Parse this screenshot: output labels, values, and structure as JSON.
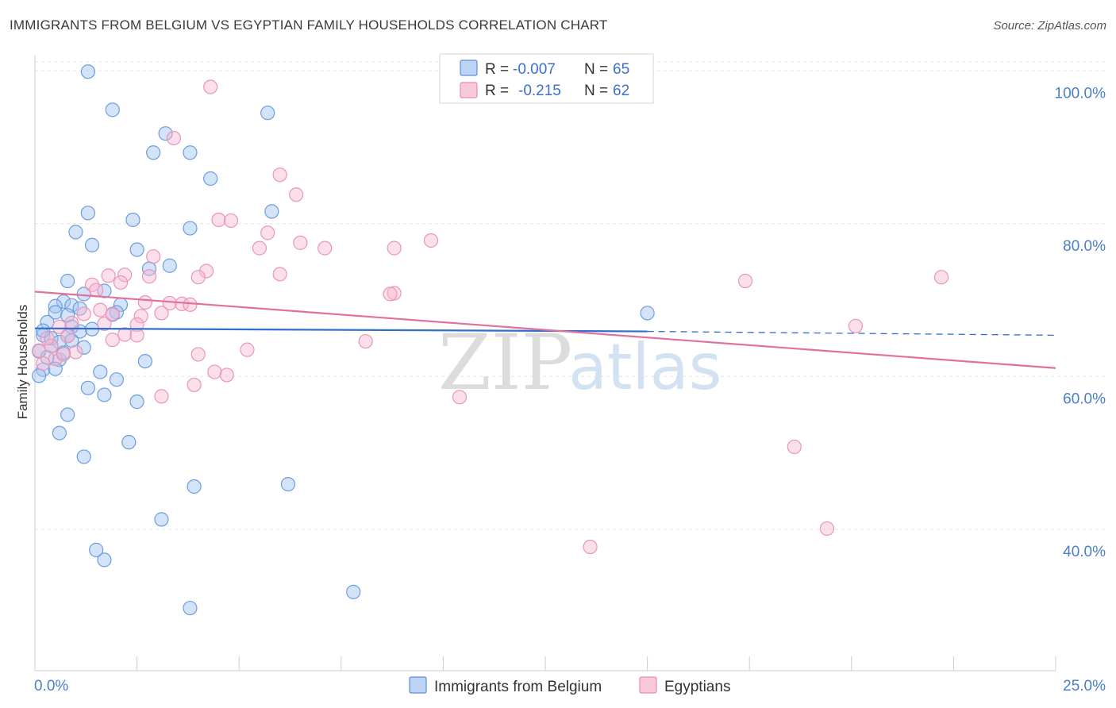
{
  "title": "IMMIGRANTS FROM BELGIUM VS EGYPTIAN FAMILY HOUSEHOLDS CORRELATION CHART",
  "source": "Source: ZipAtlas.com",
  "watermark": {
    "zip": "ZIP",
    "atlas": "atlas"
  },
  "legend": {
    "rows": [
      {
        "r_label": "R =",
        "r_value": "-0.007",
        "n_label": "N =",
        "n_value": "65"
      },
      {
        "r_label": "R =",
        "r_value": "-0.215",
        "n_label": "N =",
        "n_value": "62"
      }
    ]
  },
  "chart_data": {
    "type": "scatter",
    "title": "IMMIGRANTS FROM BELGIUM VS EGYPTIAN FAMILY HOUSEHOLDS CORRELATION CHART",
    "xlabel": "",
    "ylabel": "Family Households",
    "xlim": [
      0,
      25
    ],
    "ylim": [
      21.5,
      102
    ],
    "x_tick_labels": [
      "0.0%",
      "25.0%"
    ],
    "y_ticks": [
      40,
      60,
      80,
      100
    ],
    "y_tick_labels": [
      "40.0%",
      "60.0%",
      "80.0%",
      "100.0%"
    ],
    "grid": true,
    "legend_placement": "top-center",
    "colors": {
      "belgium": "#5b8fd9",
      "egyptians": "#e98ab0",
      "belgium_line": "#2f6fcf",
      "egyptians_line": "#e0719c"
    },
    "series": [
      {
        "name": "Immigrants from Belgium",
        "R": -0.007,
        "N": 65,
        "trend": {
          "x0": 0,
          "y0": 66.3,
          "x1": 15,
          "y1": 65.9,
          "dash_to_x": 25,
          "dash_to_y": 65.4
        },
        "points": [
          [
            1.3,
            99.9
          ],
          [
            1.9,
            94.9
          ],
          [
            5.7,
            94.5
          ],
          [
            3.2,
            91.8
          ],
          [
            3.8,
            89.3
          ],
          [
            2.9,
            89.3
          ],
          [
            4.3,
            85.9
          ],
          [
            5.8,
            81.6
          ],
          [
            1.3,
            81.4
          ],
          [
            2.4,
            80.5
          ],
          [
            3.8,
            79.4
          ],
          [
            1.0,
            78.9
          ],
          [
            1.4,
            77.2
          ],
          [
            2.5,
            76.6
          ],
          [
            3.3,
            74.5
          ],
          [
            2.8,
            74.1
          ],
          [
            0.8,
            72.5
          ],
          [
            1.7,
            71.2
          ],
          [
            1.2,
            70.8
          ],
          [
            0.7,
            69.8
          ],
          [
            0.9,
            69.3
          ],
          [
            2.1,
            69.4
          ],
          [
            0.5,
            69.2
          ],
          [
            1.1,
            68.9
          ],
          [
            0.5,
            68.4
          ],
          [
            2.0,
            68.4
          ],
          [
            1.9,
            68.1
          ],
          [
            0.8,
            68.0
          ],
          [
            15.0,
            68.3
          ],
          [
            0.3,
            67.1
          ],
          [
            0.9,
            66.5
          ],
          [
            1.1,
            65.9
          ],
          [
            0.2,
            65.4
          ],
          [
            0.4,
            65.0
          ],
          [
            0.6,
            64.5
          ],
          [
            0.8,
            65.3
          ],
          [
            1.2,
            63.8
          ],
          [
            0.1,
            63.3
          ],
          [
            0.6,
            62.2
          ],
          [
            2.7,
            62.0
          ],
          [
            0.2,
            60.9
          ],
          [
            0.1,
            60.1
          ],
          [
            1.6,
            60.6
          ],
          [
            2.0,
            59.6
          ],
          [
            1.3,
            58.5
          ],
          [
            1.7,
            57.6
          ],
          [
            2.5,
            56.7
          ],
          [
            0.8,
            55.0
          ],
          [
            0.6,
            52.6
          ],
          [
            2.3,
            51.4
          ],
          [
            1.2,
            49.5
          ],
          [
            3.9,
            45.6
          ],
          [
            6.2,
            45.9
          ],
          [
            3.1,
            41.3
          ],
          [
            1.5,
            37.3
          ],
          [
            1.7,
            36.0
          ],
          [
            7.8,
            31.8
          ],
          [
            3.8,
            29.7
          ],
          [
            0.3,
            62.5
          ],
          [
            0.4,
            64.0
          ],
          [
            0.7,
            63.1
          ],
          [
            1.4,
            66.2
          ],
          [
            0.2,
            66.0
          ],
          [
            0.5,
            61.0
          ],
          [
            0.9,
            64.7
          ]
        ]
      },
      {
        "name": "Egyptians",
        "R": -0.215,
        "N": 62,
        "trend": {
          "x0": 0,
          "y0": 71.1,
          "x1": 25,
          "y1": 61.1
        },
        "points": [
          [
            4.3,
            97.9
          ],
          [
            3.4,
            91.2
          ],
          [
            6.0,
            86.4
          ],
          [
            6.4,
            83.8
          ],
          [
            4.5,
            80.5
          ],
          [
            4.8,
            80.4
          ],
          [
            5.7,
            78.8
          ],
          [
            9.7,
            77.8
          ],
          [
            6.5,
            77.5
          ],
          [
            7.1,
            76.8
          ],
          [
            5.5,
            76.8
          ],
          [
            8.8,
            76.8
          ],
          [
            2.9,
            75.7
          ],
          [
            4.2,
            73.8
          ],
          [
            2.2,
            73.3
          ],
          [
            6.0,
            73.4
          ],
          [
            1.8,
            73.2
          ],
          [
            2.8,
            73.1
          ],
          [
            4.0,
            73.0
          ],
          [
            17.4,
            72.5
          ],
          [
            22.2,
            73.0
          ],
          [
            1.4,
            72.0
          ],
          [
            2.1,
            72.3
          ],
          [
            1.5,
            71.3
          ],
          [
            8.8,
            70.9
          ],
          [
            8.7,
            70.8
          ],
          [
            2.7,
            69.7
          ],
          [
            3.3,
            69.6
          ],
          [
            3.6,
            69.5
          ],
          [
            3.8,
            69.4
          ],
          [
            1.6,
            68.7
          ],
          [
            1.9,
            68.2
          ],
          [
            3.1,
            68.3
          ],
          [
            2.6,
            67.9
          ],
          [
            1.2,
            68.2
          ],
          [
            1.7,
            66.9
          ],
          [
            2.5,
            66.8
          ],
          [
            20.1,
            66.6
          ],
          [
            0.6,
            66.5
          ],
          [
            0.8,
            65.3
          ],
          [
            2.2,
            65.5
          ],
          [
            2.5,
            65.4
          ],
          [
            1.9,
            64.8
          ],
          [
            8.1,
            64.6
          ],
          [
            0.4,
            64.0
          ],
          [
            5.2,
            63.5
          ],
          [
            1.0,
            63.2
          ],
          [
            4.0,
            62.9
          ],
          [
            0.5,
            62.3
          ],
          [
            0.2,
            61.7
          ],
          [
            4.4,
            60.6
          ],
          [
            4.7,
            60.2
          ],
          [
            3.9,
            58.9
          ],
          [
            3.1,
            57.4
          ],
          [
            10.4,
            57.3
          ],
          [
            18.6,
            50.8
          ],
          [
            19.4,
            40.1
          ],
          [
            13.6,
            37.7
          ],
          [
            0.1,
            63.4
          ],
          [
            0.3,
            65.0
          ],
          [
            0.7,
            62.9
          ],
          [
            0.9,
            67.0
          ]
        ]
      }
    ]
  }
}
